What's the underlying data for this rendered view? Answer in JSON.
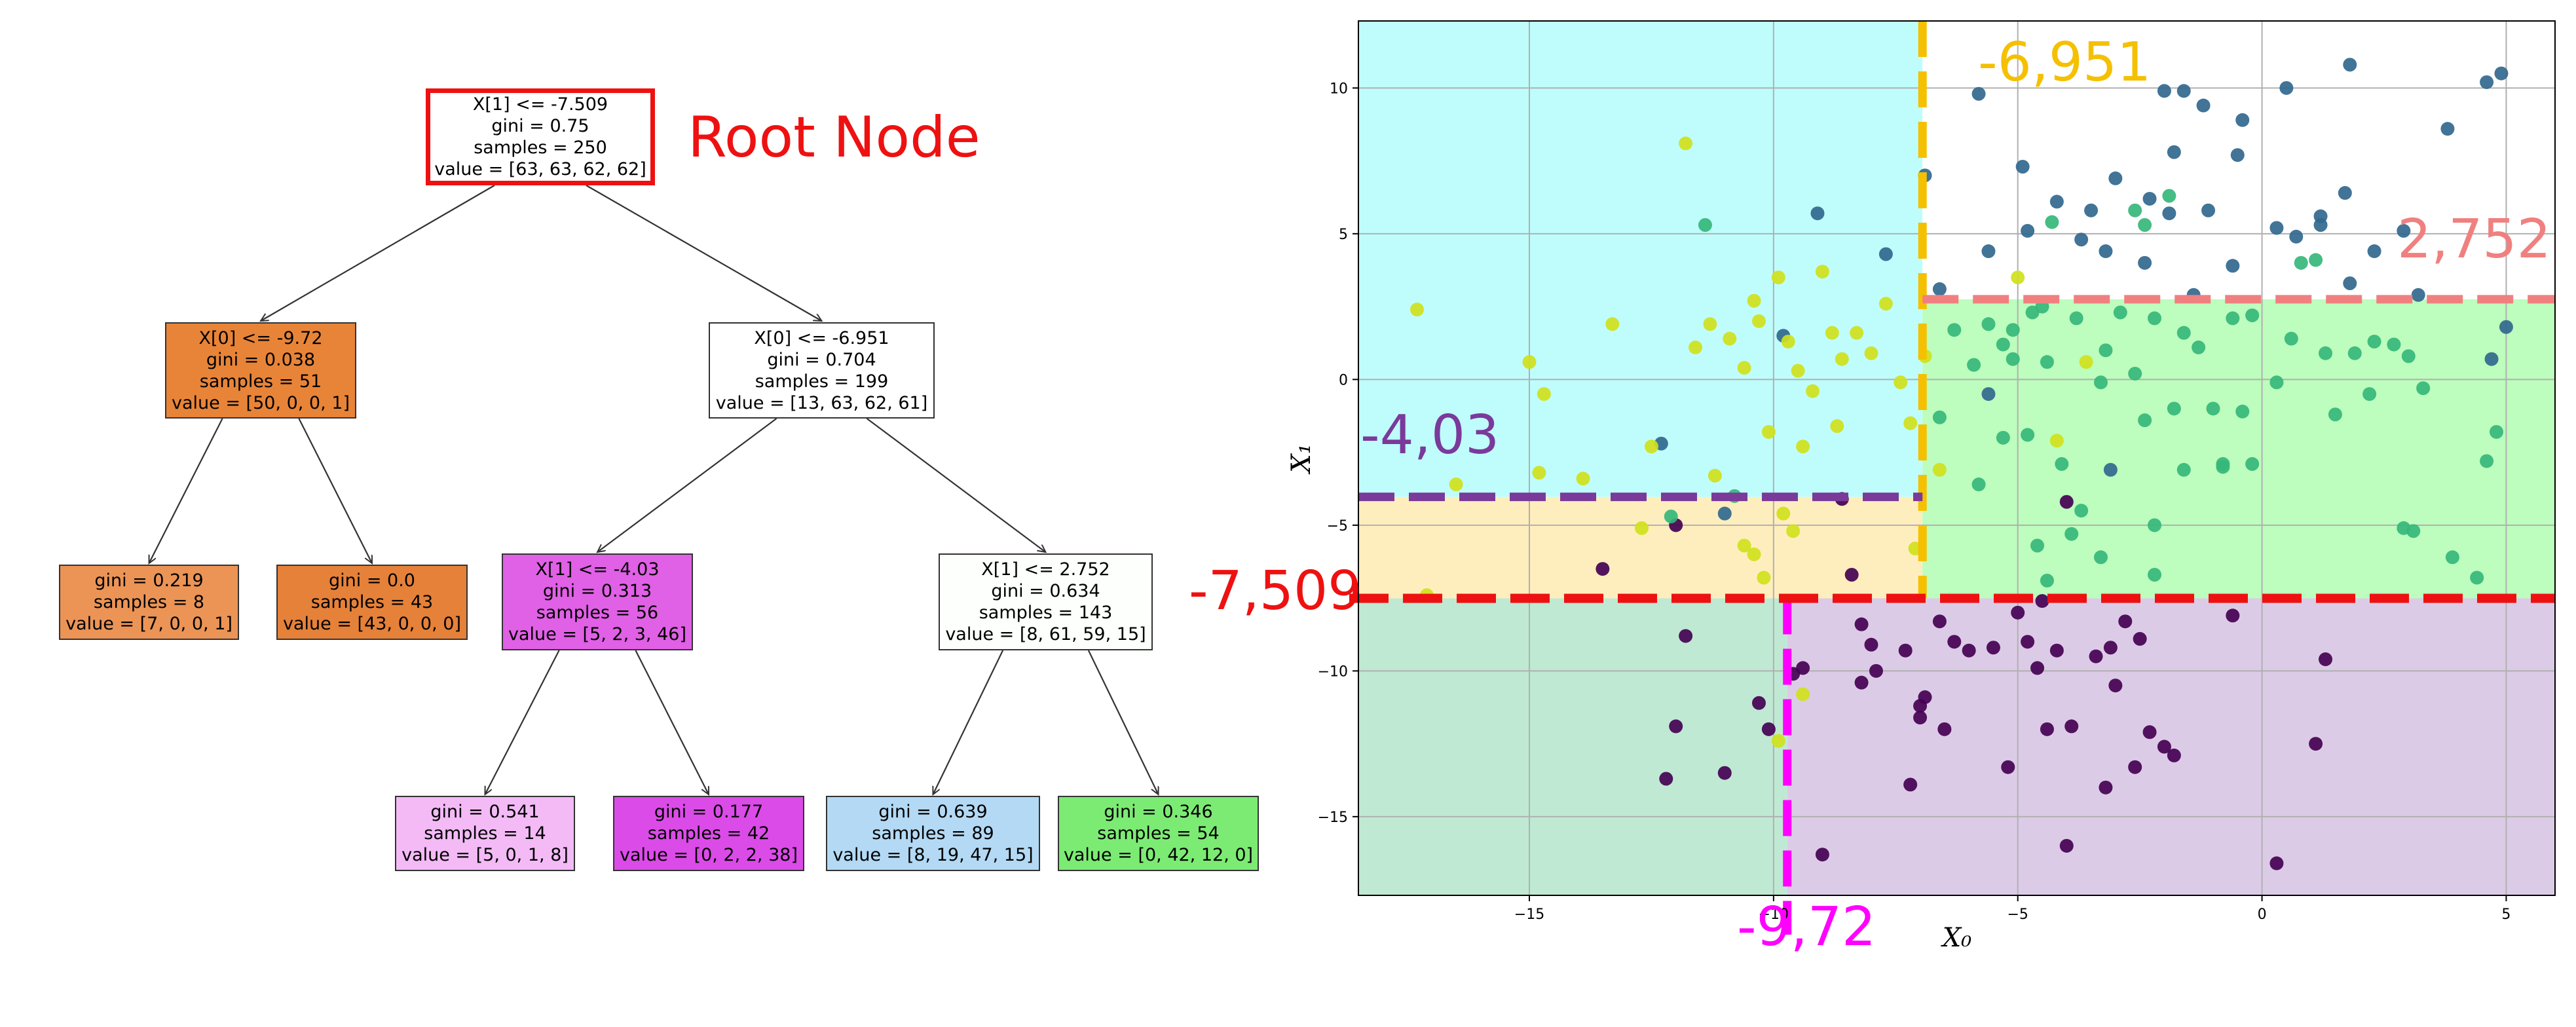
{
  "tree": {
    "root_label": "Root Node",
    "nodes": [
      {
        "lines": [
          "X[1] <= -7.509",
          "gini = 0.75",
          "samples = 250",
          "value = [63, 63, 62, 62]"
        ],
        "fill": "#ffffff"
      },
      {
        "lines": [
          "X[0] <= -9.72",
          "gini = 0.038",
          "samples = 51",
          "value = [50, 0, 0, 1]"
        ],
        "fill": "#e88438"
      },
      {
        "lines": [
          "X[0] <= -6.951",
          "gini = 0.704",
          "samples = 199",
          "value = [13, 63, 62, 61]"
        ],
        "fill": "#ffffff"
      },
      {
        "lines": [
          "gini = 0.219",
          "samples = 8",
          "value = [7, 0, 0, 1]"
        ],
        "fill": "#eb9456"
      },
      {
        "lines": [
          "gini = 0.0",
          "samples = 43",
          "value = [43, 0, 0, 0]"
        ],
        "fill": "#e58139"
      },
      {
        "lines": [
          "X[1] <= -4.03",
          "gini = 0.313",
          "samples = 56",
          "value = [5, 2, 3, 46]"
        ],
        "fill": "#e060e6"
      },
      {
        "lines": [
          "X[1] <= 2.752",
          "gini = 0.634",
          "samples = 143",
          "value = [8, 61, 59, 15]"
        ],
        "fill": "#fcfffc"
      },
      {
        "lines": [
          "gini = 0.541",
          "samples = 14",
          "value = [5, 0, 1, 8]"
        ],
        "fill": "#f3baf6"
      },
      {
        "lines": [
          "gini = 0.177",
          "samples = 42",
          "value = [0, 2, 2, 38]"
        ],
        "fill": "#db4be8"
      },
      {
        "lines": [
          "gini = 0.639",
          "samples = 89",
          "value = [8, 19, 47, 15]"
        ],
        "fill": "#b3d9f4"
      },
      {
        "lines": [
          "gini = 0.346",
          "samples = 54",
          "value = [0, 42, 12, 0]"
        ],
        "fill": "#7ceb74"
      }
    ]
  },
  "chart_data": {
    "type": "scatter",
    "xlabel": "X₀",
    "ylabel": "X₁",
    "xlim": [
      -18.5,
      6.0
    ],
    "ylim": [
      -17.7,
      12.3
    ],
    "xticks": [
      -15,
      -10,
      -5,
      0,
      5
    ],
    "yticks": [
      10,
      5,
      0,
      -5,
      -10,
      -15
    ],
    "xtick_labels": [
      "−15",
      "−10",
      "−5",
      "0",
      "5"
    ],
    "ytick_labels": [
      "10",
      "5",
      "0",
      "−5",
      "−10",
      "−15"
    ],
    "grid": true,
    "thresholds": {
      "x1_root": {
        "value": -7.509,
        "label": "-7,509",
        "color": "#ee1111"
      },
      "x0_left": {
        "value": -9.72,
        "label": "-9,72",
        "color": "#ff00ff"
      },
      "x0_right": {
        "value": -6.951,
        "label": "-6,951",
        "color": "#f5c000"
      },
      "x1_mid_left": {
        "value": -4.03,
        "label": "-4,03",
        "color": "#7a3a9a"
      },
      "x1_mid_right": {
        "value": 2.752,
        "label": "2,752",
        "color": "#f08080"
      }
    },
    "region_colors": {
      "bottom_left": "#bfe9d3",
      "bottom_right": "#dccbe6",
      "mid_left_low": "#ffeebd",
      "mid_left_high": "#bffdfd",
      "right_low": "#bdfdbd",
      "right_high": "#ffffff"
    },
    "class_colors": [
      "#440154",
      "#31688e",
      "#35b779",
      "#d0e11c"
    ],
    "points": [
      {
        "x": -12.2,
        "y": -13.7,
        "c": 0
      },
      {
        "x": -11.0,
        "y": -13.5,
        "c": 0
      },
      {
        "x": -12.0,
        "y": -11.9,
        "c": 0
      },
      {
        "x": -10.3,
        "y": -11.1,
        "c": 0
      },
      {
        "x": -10.1,
        "y": -12.0,
        "c": 0
      },
      {
        "x": -11.8,
        "y": -8.8,
        "c": 0
      },
      {
        "x": -9.6,
        "y": -10.1,
        "c": 0
      },
      {
        "x": -9.4,
        "y": -9.9,
        "c": 0
      },
      {
        "x": -9.0,
        "y": -16.3,
        "c": 0
      },
      {
        "x": -8.2,
        "y": -8.4,
        "c": 0
      },
      {
        "x": -8.0,
        "y": -9.1,
        "c": 0
      },
      {
        "x": -7.9,
        "y": -10.0,
        "c": 0
      },
      {
        "x": -8.2,
        "y": -10.4,
        "c": 0
      },
      {
        "x": -7.3,
        "y": -9.3,
        "c": 0
      },
      {
        "x": -7.0,
        "y": -11.2,
        "c": 0
      },
      {
        "x": -7.0,
        "y": -11.6,
        "c": 0
      },
      {
        "x": -6.9,
        "y": -10.9,
        "c": 0
      },
      {
        "x": -6.6,
        "y": -8.3,
        "c": 0
      },
      {
        "x": -6.3,
        "y": -9.0,
        "c": 0
      },
      {
        "x": -6.5,
        "y": -12.0,
        "c": 0
      },
      {
        "x": -7.2,
        "y": -13.9,
        "c": 0
      },
      {
        "x": -6.0,
        "y": -9.3,
        "c": 0
      },
      {
        "x": -5.5,
        "y": -9.2,
        "c": 0
      },
      {
        "x": -5.0,
        "y": -8.0,
        "c": 0
      },
      {
        "x": -4.8,
        "y": -9.0,
        "c": 0
      },
      {
        "x": -4.6,
        "y": -9.9,
        "c": 0
      },
      {
        "x": -4.2,
        "y": -9.3,
        "c": 0
      },
      {
        "x": -4.4,
        "y": -12.0,
        "c": 0
      },
      {
        "x": -3.9,
        "y": -11.9,
        "c": 0
      },
      {
        "x": -3.4,
        "y": -9.5,
        "c": 0
      },
      {
        "x": -3.1,
        "y": -9.2,
        "c": 0
      },
      {
        "x": -2.8,
        "y": -8.3,
        "c": 0
      },
      {
        "x": -2.5,
        "y": -8.9,
        "c": 0
      },
      {
        "x": -2.3,
        "y": -12.1,
        "c": 0
      },
      {
        "x": -2.0,
        "y": -12.6,
        "c": 0
      },
      {
        "x": -1.8,
        "y": -12.9,
        "c": 0
      },
      {
        "x": -3.2,
        "y": -14.0,
        "c": 0
      },
      {
        "x": -4.0,
        "y": -16.0,
        "c": 0
      },
      {
        "x": -5.2,
        "y": -13.3,
        "c": 0
      },
      {
        "x": -2.6,
        "y": -13.3,
        "c": 0
      },
      {
        "x": -3.0,
        "y": -10.5,
        "c": 0
      },
      {
        "x": -0.6,
        "y": -8.1,
        "c": 0
      },
      {
        "x": 1.1,
        "y": -12.5,
        "c": 0
      },
      {
        "x": 1.3,
        "y": -9.6,
        "c": 0
      },
      {
        "x": 0.3,
        "y": -16.6,
        "c": 0
      },
      {
        "x": -4.5,
        "y": -7.6,
        "c": 0
      },
      {
        "x": -12.0,
        "y": -5.0,
        "c": 0
      },
      {
        "x": -8.4,
        "y": -6.7,
        "c": 0
      },
      {
        "x": -13.5,
        "y": -6.5,
        "c": 0
      },
      {
        "x": -8.6,
        "y": -4.1,
        "c": 0
      },
      {
        "x": -4.0,
        "y": -4.2,
        "c": 0
      },
      {
        "x": -5.8,
        "y": 9.8,
        "c": 1
      },
      {
        "x": -2.0,
        "y": 9.9,
        "c": 1
      },
      {
        "x": -1.6,
        "y": 9.9,
        "c": 1
      },
      {
        "x": -1.2,
        "y": 9.4,
        "c": 1
      },
      {
        "x": 0.5,
        "y": 10.0,
        "c": 1
      },
      {
        "x": 1.8,
        "y": 10.8,
        "c": 1
      },
      {
        "x": 4.6,
        "y": 10.2,
        "c": 1
      },
      {
        "x": 4.9,
        "y": 10.5,
        "c": 1
      },
      {
        "x": -0.4,
        "y": 8.9,
        "c": 1
      },
      {
        "x": -4.9,
        "y": 7.3,
        "c": 1
      },
      {
        "x": -3.0,
        "y": 6.9,
        "c": 1
      },
      {
        "x": -1.8,
        "y": 7.8,
        "c": 1
      },
      {
        "x": -0.5,
        "y": 7.7,
        "c": 1
      },
      {
        "x": 3.8,
        "y": 8.6,
        "c": 1
      },
      {
        "x": -4.2,
        "y": 6.1,
        "c": 1
      },
      {
        "x": -2.3,
        "y": 6.2,
        "c": 1
      },
      {
        "x": -3.5,
        "y": 5.8,
        "c": 1
      },
      {
        "x": -1.9,
        "y": 5.7,
        "c": 1
      },
      {
        "x": -1.1,
        "y": 5.8,
        "c": 1
      },
      {
        "x": 0.7,
        "y": 4.9,
        "c": 1
      },
      {
        "x": 1.2,
        "y": 5.6,
        "c": 1
      },
      {
        "x": 1.7,
        "y": 6.4,
        "c": 1
      },
      {
        "x": -4.8,
        "y": 5.1,
        "c": 1
      },
      {
        "x": -3.7,
        "y": 4.8,
        "c": 1
      },
      {
        "x": -2.4,
        "y": 4.0,
        "c": 1
      },
      {
        "x": -3.2,
        "y": 4.4,
        "c": 1
      },
      {
        "x": -0.6,
        "y": 3.9,
        "c": 1
      },
      {
        "x": 0.3,
        "y": 5.2,
        "c": 1
      },
      {
        "x": 1.2,
        "y": 5.3,
        "c": 1
      },
      {
        "x": 2.3,
        "y": 4.4,
        "c": 1
      },
      {
        "x": 2.9,
        "y": 5.1,
        "c": 1
      },
      {
        "x": -5.6,
        "y": 4.4,
        "c": 1
      },
      {
        "x": 1.8,
        "y": 3.3,
        "c": 1
      },
      {
        "x": 3.2,
        "y": 2.9,
        "c": 1
      },
      {
        "x": 5.0,
        "y": 1.8,
        "c": 1
      },
      {
        "x": 4.7,
        "y": 0.7,
        "c": 1
      },
      {
        "x": -3.1,
        "y": -3.1,
        "c": 1
      },
      {
        "x": -1.4,
        "y": 2.9,
        "c": 1
      },
      {
        "x": -12.3,
        "y": -2.2,
        "c": 1
      },
      {
        "x": -9.1,
        "y": 5.7,
        "c": 1
      },
      {
        "x": -11.0,
        "y": -4.6,
        "c": 1
      },
      {
        "x": -5.6,
        "y": -0.5,
        "c": 1
      },
      {
        "x": -9.8,
        "y": 1.5,
        "c": 1
      },
      {
        "x": -6.9,
        "y": 7.0,
        "c": 1
      },
      {
        "x": -6.6,
        "y": 3.1,
        "c": 1
      },
      {
        "x": -7.7,
        "y": 4.3,
        "c": 1
      },
      {
        "x": -11.4,
        "y": 5.3,
        "c": 2
      },
      {
        "x": -12.1,
        "y": -4.7,
        "c": 2
      },
      {
        "x": -6.6,
        "y": -1.3,
        "c": 2
      },
      {
        "x": -6.3,
        "y": 1.7,
        "c": 2
      },
      {
        "x": -5.6,
        "y": 1.9,
        "c": 2
      },
      {
        "x": -5.1,
        "y": 1.7,
        "c": 2
      },
      {
        "x": -4.7,
        "y": 2.3,
        "c": 2
      },
      {
        "x": -5.3,
        "y": 1.2,
        "c": 2
      },
      {
        "x": -4.5,
        "y": 2.5,
        "c": 2
      },
      {
        "x": -3.8,
        "y": 2.1,
        "c": 2
      },
      {
        "x": -3.2,
        "y": 1.0,
        "c": 2
      },
      {
        "x": -2.9,
        "y": 2.3,
        "c": 2
      },
      {
        "x": -2.6,
        "y": 0.2,
        "c": 2
      },
      {
        "x": -2.2,
        "y": 2.1,
        "c": 2
      },
      {
        "x": -1.6,
        "y": 1.6,
        "c": 2
      },
      {
        "x": -1.3,
        "y": 1.1,
        "c": 2
      },
      {
        "x": -0.6,
        "y": 2.1,
        "c": 2
      },
      {
        "x": -0.2,
        "y": 2.2,
        "c": 2
      },
      {
        "x": 0.6,
        "y": 1.4,
        "c": 2
      },
      {
        "x": 1.3,
        "y": 0.9,
        "c": 2
      },
      {
        "x": 1.9,
        "y": 0.9,
        "c": 2
      },
      {
        "x": 2.3,
        "y": 1.3,
        "c": 2
      },
      {
        "x": 2.7,
        "y": 1.2,
        "c": 2
      },
      {
        "x": 3.0,
        "y": 0.8,
        "c": 2
      },
      {
        "x": -5.9,
        "y": 0.5,
        "c": 2
      },
      {
        "x": -5.1,
        "y": 0.7,
        "c": 2
      },
      {
        "x": -4.4,
        "y": 0.6,
        "c": 2
      },
      {
        "x": -3.3,
        "y": -0.1,
        "c": 2
      },
      {
        "x": -2.4,
        "y": -1.4,
        "c": 2
      },
      {
        "x": -1.8,
        "y": -1.0,
        "c": 2
      },
      {
        "x": -1.0,
        "y": -1.0,
        "c": 2
      },
      {
        "x": -0.8,
        "y": -2.9,
        "c": 2
      },
      {
        "x": -0.4,
        "y": -1.1,
        "c": 2
      },
      {
        "x": 0.3,
        "y": -0.1,
        "c": 2
      },
      {
        "x": 1.5,
        "y": -1.2,
        "c": 2
      },
      {
        "x": 2.2,
        "y": -0.5,
        "c": 2
      },
      {
        "x": 3.3,
        "y": -0.3,
        "c": 2
      },
      {
        "x": 4.6,
        "y": -2.8,
        "c": 2
      },
      {
        "x": 4.8,
        "y": -1.8,
        "c": 2
      },
      {
        "x": -5.3,
        "y": -2.0,
        "c": 2
      },
      {
        "x": -4.8,
        "y": -1.9,
        "c": 2
      },
      {
        "x": -4.1,
        "y": -2.9,
        "c": 2
      },
      {
        "x": -3.7,
        "y": -4.5,
        "c": 2
      },
      {
        "x": -2.2,
        "y": -5.0,
        "c": 2
      },
      {
        "x": -1.6,
        "y": -3.1,
        "c": 2
      },
      {
        "x": -0.8,
        "y": -3.0,
        "c": 2
      },
      {
        "x": -0.2,
        "y": -2.9,
        "c": 2
      },
      {
        "x": -4.6,
        "y": -5.7,
        "c": 2
      },
      {
        "x": -3.9,
        "y": -5.3,
        "c": 2
      },
      {
        "x": -3.3,
        "y": -6.1,
        "c": 2
      },
      {
        "x": -2.2,
        "y": -6.7,
        "c": 2
      },
      {
        "x": -4.4,
        "y": -6.9,
        "c": 2
      },
      {
        "x": 2.9,
        "y": -5.1,
        "c": 2
      },
      {
        "x": 3.1,
        "y": -5.2,
        "c": 2
      },
      {
        "x": 3.9,
        "y": -6.1,
        "c": 2
      },
      {
        "x": 4.4,
        "y": -6.8,
        "c": 2
      },
      {
        "x": -5.8,
        "y": -3.6,
        "c": 2
      },
      {
        "x": -2.6,
        "y": 5.8,
        "c": 2
      },
      {
        "x": -1.9,
        "y": 6.3,
        "c": 2
      },
      {
        "x": 0.8,
        "y": 4.0,
        "c": 2
      },
      {
        "x": 1.1,
        "y": 4.1,
        "c": 2
      },
      {
        "x": -2.4,
        "y": 5.3,
        "c": 2
      },
      {
        "x": -4.3,
        "y": 5.4,
        "c": 2
      },
      {
        "x": -10.8,
        "y": -4.0,
        "c": 2
      },
      {
        "x": -17.3,
        "y": 2.4,
        "c": 3
      },
      {
        "x": -15.0,
        "y": 0.6,
        "c": 3
      },
      {
        "x": -14.7,
        "y": -0.5,
        "c": 3
      },
      {
        "x": -14.8,
        "y": -3.2,
        "c": 3
      },
      {
        "x": -13.9,
        "y": -3.4,
        "c": 3
      },
      {
        "x": -13.3,
        "y": 1.9,
        "c": 3
      },
      {
        "x": -12.5,
        "y": -2.3,
        "c": 3
      },
      {
        "x": -11.8,
        "y": 8.1,
        "c": 3
      },
      {
        "x": -11.6,
        "y": 1.1,
        "c": 3
      },
      {
        "x": -11.3,
        "y": 1.9,
        "c": 3
      },
      {
        "x": -11.2,
        "y": -3.3,
        "c": 3
      },
      {
        "x": -10.9,
        "y": 1.4,
        "c": 3
      },
      {
        "x": -10.6,
        "y": 0.4,
        "c": 3
      },
      {
        "x": -10.4,
        "y": 2.7,
        "c": 3
      },
      {
        "x": -10.1,
        "y": -1.8,
        "c": 3
      },
      {
        "x": -9.9,
        "y": 3.5,
        "c": 3
      },
      {
        "x": -9.7,
        "y": 1.3,
        "c": 3
      },
      {
        "x": -9.5,
        "y": 0.3,
        "c": 3
      },
      {
        "x": -9.2,
        "y": -0.4,
        "c": 3
      },
      {
        "x": -9.0,
        "y": 3.7,
        "c": 3
      },
      {
        "x": -8.8,
        "y": 1.6,
        "c": 3
      },
      {
        "x": -8.6,
        "y": 0.7,
        "c": 3
      },
      {
        "x": -8.3,
        "y": 1.6,
        "c": 3
      },
      {
        "x": -8.0,
        "y": 0.9,
        "c": 3
      },
      {
        "x": -7.7,
        "y": 2.6,
        "c": 3
      },
      {
        "x": -7.4,
        "y": -0.1,
        "c": 3
      },
      {
        "x": -7.2,
        "y": -1.5,
        "c": 3
      },
      {
        "x": -6.9,
        "y": 0.8,
        "c": 3
      },
      {
        "x": -6.6,
        "y": -3.1,
        "c": 3
      },
      {
        "x": -9.4,
        "y": -2.3,
        "c": 3
      },
      {
        "x": -8.7,
        "y": -1.6,
        "c": 3
      },
      {
        "x": -9.8,
        "y": -4.6,
        "c": 3
      },
      {
        "x": -10.6,
        "y": -5.7,
        "c": 3
      },
      {
        "x": -10.4,
        "y": -6.0,
        "c": 3
      },
      {
        "x": -10.2,
        "y": -6.8,
        "c": 3
      },
      {
        "x": -9.6,
        "y": -5.2,
        "c": 3
      },
      {
        "x": -12.7,
        "y": -5.1,
        "c": 3
      },
      {
        "x": -17.1,
        "y": -7.4,
        "c": 3
      },
      {
        "x": -16.5,
        "y": -3.6,
        "c": 3
      },
      {
        "x": -9.9,
        "y": -12.4,
        "c": 3
      },
      {
        "x": -9.4,
        "y": -10.8,
        "c": 3
      },
      {
        "x": -7.1,
        "y": -5.8,
        "c": 3
      },
      {
        "x": -10.3,
        "y": 2.0,
        "c": 3
      },
      {
        "x": -4.2,
        "y": -2.1,
        "c": 3
      },
      {
        "x": -3.6,
        "y": 0.6,
        "c": 3
      },
      {
        "x": -5.0,
        "y": 3.5,
        "c": 3
      }
    ]
  }
}
